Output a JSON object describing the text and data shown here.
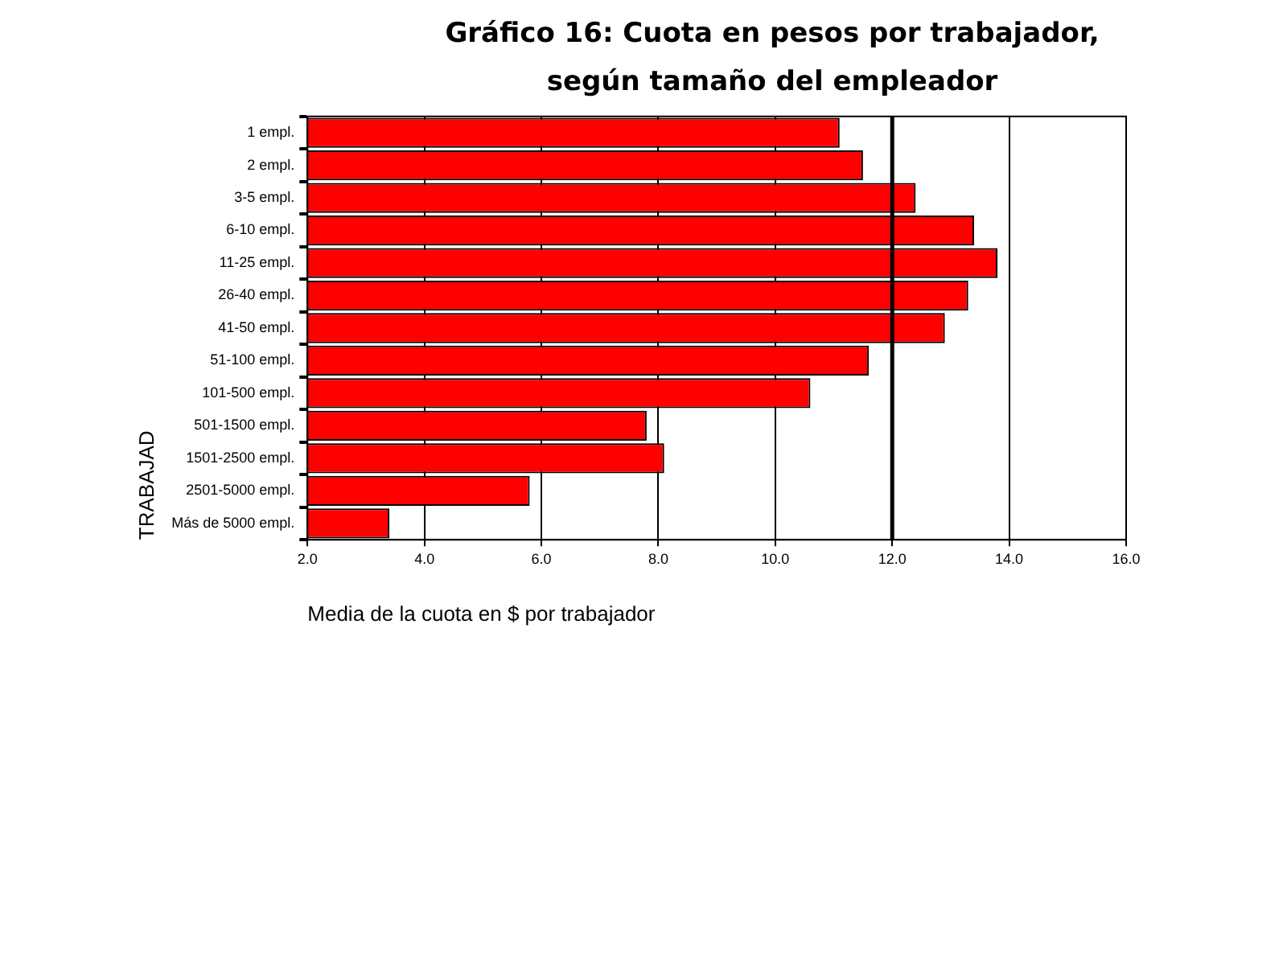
{
  "chart_data": {
    "type": "bar",
    "orientation": "horizontal",
    "title": "Gráfico 16: Cuota en pesos por trabajador,\nsegún tamaño del empleador",
    "xlabel": "Media de la cuota en $ por trabajador",
    "ylabel": "TRABAJAD",
    "categories": [
      "1 empl.",
      "2 empl.",
      "3-5 empl.",
      "6-10 empl.",
      "11-25 empl.",
      "26-40 empl.",
      "41-50 empl.",
      "51-100 empl.",
      "101-500 empl.",
      "501-1500 empl.",
      "1501-2500 empl.",
      "2501-5000 empl.",
      "Más de 5000 empl."
    ],
    "values": [
      11.1,
      11.5,
      12.4,
      13.4,
      13.8,
      13.3,
      12.9,
      11.6,
      10.6,
      7.8,
      8.1,
      5.8,
      3.4
    ],
    "color": "#ff0000",
    "xlim": [
      2,
      16
    ],
    "xticks": [
      {
        "value": 2,
        "label": "2.0"
      },
      {
        "value": 4,
        "label": "4.0"
      },
      {
        "value": 6,
        "label": "6.0"
      },
      {
        "value": 8,
        "label": "8.0"
      },
      {
        "value": 10,
        "label": "10.0"
      },
      {
        "value": 12,
        "label": "12.0"
      },
      {
        "value": 14,
        "label": "14.0"
      },
      {
        "value": 16,
        "label": "16.0"
      }
    ],
    "ref_lines": [
      {
        "axis": "x",
        "value": 12,
        "color": "#000000"
      }
    ],
    "grid": "x",
    "legend": false
  }
}
